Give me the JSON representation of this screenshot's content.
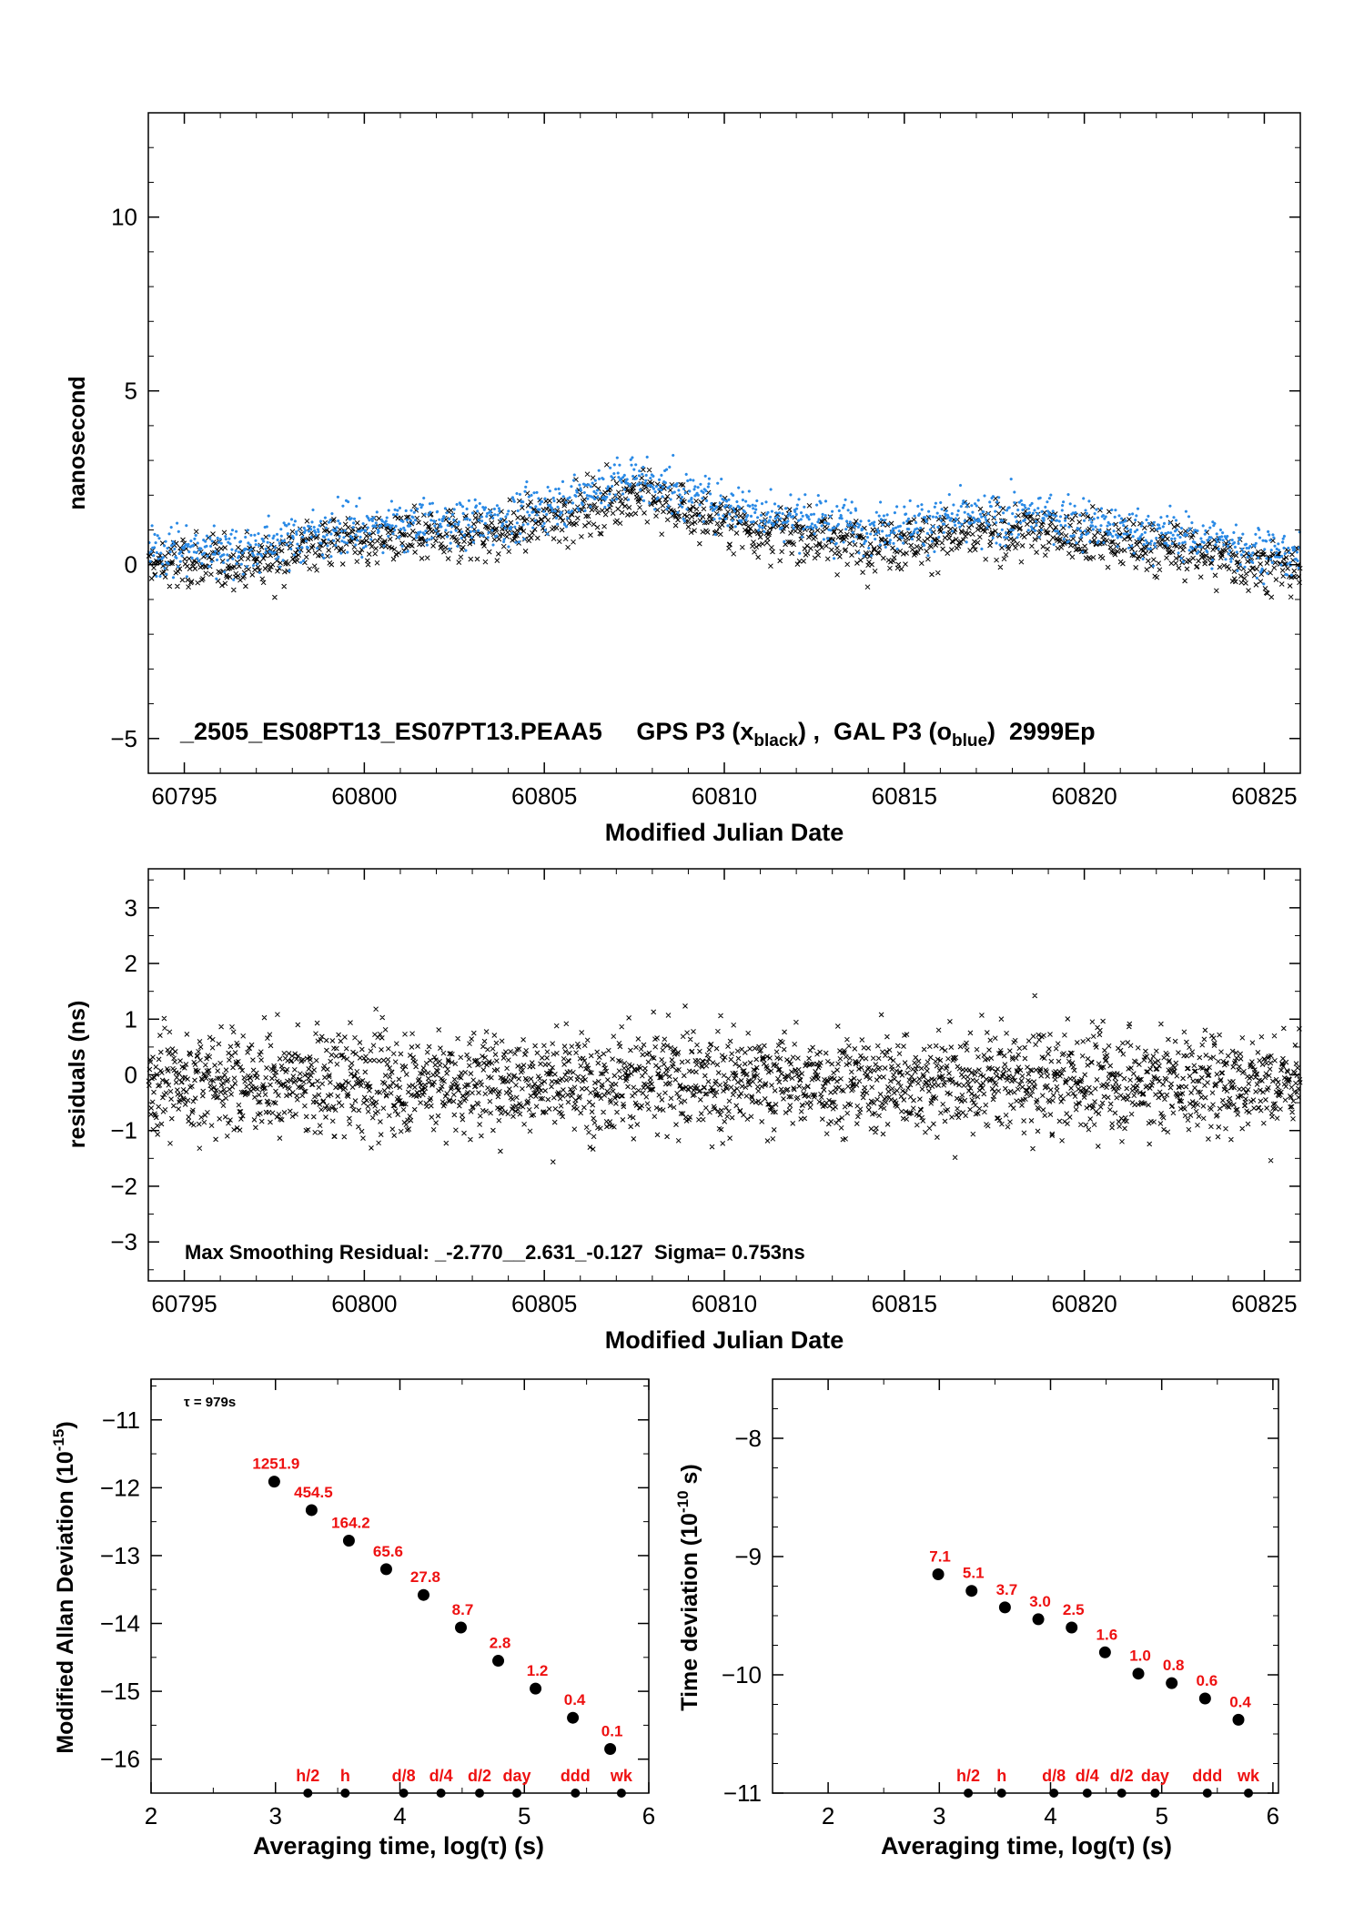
{
  "chart_data": [
    {
      "type": "scatter",
      "id": "timeseries",
      "xlabel": "Modified Julian Date",
      "ylabel": "nanosecond",
      "xlim": [
        60794,
        60826
      ],
      "ylim": [
        -6,
        13
      ],
      "xticks": [
        60795,
        60800,
        60805,
        60810,
        60815,
        60820,
        60825
      ],
      "yticks": [
        -5,
        0,
        5,
        10
      ],
      "title": "_2505_ES08PT13_ES07PT13.PEAA5     GPS P3 (x",
      "title_parts": {
        "a": "_2505_ES08PT13_ES07PT13.PEAA5     GPS P3 (x",
        "sub1": "black",
        "b": ") ,  GAL P3 (o",
        "sub2": "blue",
        "c": ")  2999Ep"
      },
      "series": [
        {
          "name": "GPS P3",
          "marker": "x",
          "color": "#000000",
          "trend": [
            [
              60794,
              0.0
            ],
            [
              60797,
              0.1
            ],
            [
              60799,
              0.7
            ],
            [
              60802,
              0.8
            ],
            [
              60804,
              1.0
            ],
            [
              60806,
              1.6
            ],
            [
              60807.5,
              2.1
            ],
            [
              60809,
              1.5
            ],
            [
              60811,
              1.0
            ],
            [
              60814,
              0.6
            ],
            [
              60817,
              0.9
            ],
            [
              60819,
              1.0
            ],
            [
              60821,
              0.6
            ],
            [
              60823,
              0.4
            ],
            [
              60826,
              -0.2
            ]
          ],
          "count": 2999
        },
        {
          "name": "GAL P3",
          "marker": "o",
          "color": "#2a8ae6",
          "trend": [
            [
              60794,
              0.4
            ],
            [
              60797,
              0.5
            ],
            [
              60799,
              1.0
            ],
            [
              60802,
              1.2
            ],
            [
              60804,
              1.3
            ],
            [
              60806,
              2.0
            ],
            [
              60807.5,
              2.5
            ],
            [
              60809,
              2.0
            ],
            [
              60811,
              1.5
            ],
            [
              60814,
              1.1
            ],
            [
              60817,
              1.3
            ],
            [
              60819,
              1.4
            ],
            [
              60821,
              1.0
            ],
            [
              60823,
              0.8
            ],
            [
              60826,
              0.2
            ]
          ],
          "count": 2999
        }
      ]
    },
    {
      "type": "scatter",
      "id": "residuals",
      "xlabel": "Modified Julian Date",
      "ylabel": "residuals (ns)",
      "xlim": [
        60794,
        60826
      ],
      "ylim": [
        -3.7,
        3.7
      ],
      "xticks": [
        60795,
        60800,
        60805,
        60810,
        60815,
        60820,
        60825
      ],
      "yticks": [
        -3,
        -2,
        -1,
        0,
        1,
        2,
        3
      ],
      "annotation": "Max Smoothing Residual: _-2.770__2.631_-0.127  Sigma= 0.753ns",
      "max_residual": 2.631,
      "min_residual": -2.77,
      "mean_residual": -0.127,
      "sigma_ns": 0.753,
      "series": [
        {
          "marker": "x",
          "color": "#000000",
          "count": 2999
        }
      ]
    },
    {
      "type": "scatter",
      "id": "mdev",
      "xlabel": "Averaging time, log(τ) (s)",
      "ylabel": "Modified Allan Deviation (10",
      "ylabel_sup": "-15",
      "ylabel_end": ")",
      "xlim": [
        2,
        6
      ],
      "ylim": [
        -16.5,
        -10.4
      ],
      "xticks": [
        2,
        3,
        4,
        5,
        6
      ],
      "yticks": [
        -16,
        -15,
        -14,
        -13,
        -12,
        -11
      ],
      "tau_note": "τ = 979s",
      "points": [
        {
          "x": 2.99,
          "y": -11.91,
          "label": "1251.9"
        },
        {
          "x": 3.29,
          "y": -12.33,
          "label": "454.5"
        },
        {
          "x": 3.59,
          "y": -12.78,
          "label": "164.2"
        },
        {
          "x": 3.89,
          "y": -13.2,
          "label": "65.6"
        },
        {
          "x": 4.19,
          "y": -13.58,
          "label": "27.8"
        },
        {
          "x": 4.49,
          "y": -14.06,
          "label": "8.7"
        },
        {
          "x": 4.79,
          "y": -14.55,
          "label": "2.8"
        },
        {
          "x": 5.09,
          "y": -14.96,
          "label": "1.2"
        },
        {
          "x": 5.39,
          "y": -15.39,
          "label": "0.4"
        },
        {
          "x": 5.69,
          "y": -15.85,
          "label": "0.1"
        }
      ],
      "markers": [
        {
          "x": 3.26,
          "label": "h/2"
        },
        {
          "x": 3.56,
          "label": "h"
        },
        {
          "x": 4.03,
          "label": "d/8"
        },
        {
          "x": 4.33,
          "label": "d/4"
        },
        {
          "x": 4.64,
          "label": "d/2"
        },
        {
          "x": 4.94,
          "label": "day"
        },
        {
          "x": 5.41,
          "label": "ddd"
        },
        {
          "x": 5.78,
          "label": "wk"
        }
      ]
    },
    {
      "type": "scatter",
      "id": "tdev",
      "xlabel": "Averaging time, log(τ) (s)",
      "ylabel": "Time deviation (10",
      "ylabel_sup": "-10",
      "ylabel_end": " s)",
      "xlim": [
        1.5,
        6.05
      ],
      "ylim": [
        -11,
        -7.5
      ],
      "xticks": [
        2,
        3,
        4,
        5,
        6
      ],
      "yticks": [
        -11,
        -10,
        -9,
        -8
      ],
      "points": [
        {
          "x": 2.99,
          "y": -9.15,
          "label": "7.1"
        },
        {
          "x": 3.29,
          "y": -9.29,
          "label": "5.1"
        },
        {
          "x": 3.59,
          "y": -9.43,
          "label": "3.7"
        },
        {
          "x": 3.89,
          "y": -9.53,
          "label": "3.0"
        },
        {
          "x": 4.19,
          "y": -9.6,
          "label": "2.5"
        },
        {
          "x": 4.49,
          "y": -9.81,
          "label": "1.6"
        },
        {
          "x": 4.79,
          "y": -9.99,
          "label": "1.0"
        },
        {
          "x": 5.09,
          "y": -10.07,
          "label": "0.8"
        },
        {
          "x": 5.39,
          "y": -10.2,
          "label": "0.6"
        },
        {
          "x": 5.69,
          "y": -10.38,
          "label": "0.4"
        }
      ],
      "markers": [
        {
          "x": 3.26,
          "label": "h/2"
        },
        {
          "x": 3.56,
          "label": "h"
        },
        {
          "x": 4.03,
          "label": "d/8"
        },
        {
          "x": 4.33,
          "label": "d/4"
        },
        {
          "x": 4.64,
          "label": "d/2"
        },
        {
          "x": 4.94,
          "label": "day"
        },
        {
          "x": 5.41,
          "label": "ddd"
        },
        {
          "x": 5.78,
          "label": "wk"
        }
      ]
    }
  ],
  "colors": {
    "label_red": "#ee1111",
    "gps": "#000000",
    "gal": "#2a8ae6"
  }
}
